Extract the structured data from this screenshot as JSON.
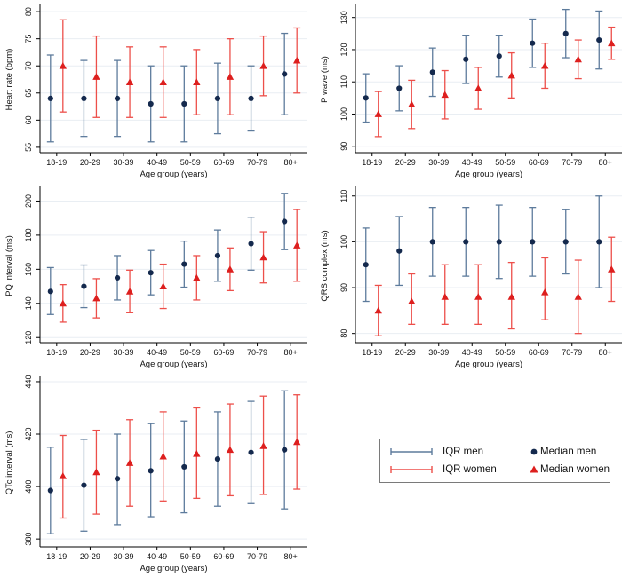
{
  "figure": {
    "background": "#ffffff",
    "x_axis_label": "Age group (years)",
    "age_groups": [
      "18-19",
      "20-29",
      "30-39",
      "40-49",
      "50-59",
      "60-69",
      "70-79",
      "80+"
    ]
  },
  "colors": {
    "men_iqr": "#5d7b9c",
    "men_median": "#14294d",
    "women_iqr": "#ed4f4a",
    "women_median": "#dd1f1e",
    "grid": "#e9eef3",
    "axis": "#000000",
    "text": "#111111",
    "legend_border": "#7a7a7a"
  },
  "legend": {
    "iqr_men": "IQR men",
    "iqr_women": "IQR women",
    "median_men": "Median men",
    "median_women": "Median women"
  },
  "chart_data": [
    {
      "type": "errorbar",
      "panel": "heart-rate",
      "ylabel": "Heart rate (bpm)",
      "xlabel": "Age group (years)",
      "categories": [
        "18-19",
        "20-29",
        "30-39",
        "40-49",
        "50-59",
        "60-69",
        "70-79",
        "80+"
      ],
      "yticks": [
        55,
        60,
        65,
        70,
        75,
        80
      ],
      "ylim": [
        54,
        81
      ],
      "grid": true,
      "series": [
        {
          "name": "men",
          "median": [
            64,
            64,
            64,
            63,
            63,
            64,
            64,
            68.5
          ],
          "q1": [
            56,
            57,
            57,
            56,
            56,
            57.5,
            58,
            61
          ],
          "q3": [
            72,
            71,
            71,
            70,
            70,
            70.5,
            70,
            76
          ]
        },
        {
          "name": "women",
          "median": [
            70,
            68,
            67,
            67,
            67,
            68,
            70,
            71
          ],
          "q1": [
            61.5,
            60.5,
            60.5,
            60.5,
            61,
            61,
            64.5,
            65
          ],
          "q3": [
            78.5,
            75.5,
            73.5,
            73.5,
            73,
            75,
            75.5,
            77
          ]
        }
      ]
    },
    {
      "type": "errorbar",
      "panel": "p-wave",
      "ylabel": "P wave (ms)",
      "xlabel": "Age group (years)",
      "categories": [
        "18-19",
        "20-29",
        "30-39",
        "40-49",
        "50-59",
        "60-69",
        "70-79",
        "80+"
      ],
      "yticks": [
        90,
        100,
        110,
        120,
        130
      ],
      "ylim": [
        88,
        133.5
      ],
      "grid": true,
      "series": [
        {
          "name": "men",
          "median": [
            105,
            108,
            113,
            117,
            118,
            122,
            125,
            123
          ],
          "q1": [
            97.5,
            101,
            105.5,
            109.5,
            111.5,
            114.5,
            117.5,
            114
          ],
          "q3": [
            112.5,
            115,
            120.5,
            124.5,
            124.5,
            129.5,
            132.5,
            132
          ]
        },
        {
          "name": "women",
          "median": [
            100,
            103,
            106,
            108,
            112,
            115,
            117,
            122
          ],
          "q1": [
            93,
            95.5,
            98.5,
            101.5,
            105,
            108,
            111,
            117
          ],
          "q3": [
            107,
            110.5,
            113.5,
            114.5,
            119,
            122,
            123,
            127
          ]
        }
      ]
    },
    {
      "type": "errorbar",
      "panel": "pq-interval",
      "ylabel": "PQ interval (ms)",
      "xlabel": "Age group (years)",
      "categories": [
        "18-19",
        "20-29",
        "30-39",
        "40-49",
        "50-59",
        "60-69",
        "70-79",
        "80+"
      ],
      "yticks": [
        120,
        140,
        160,
        180,
        200
      ],
      "ylim": [
        117,
        207
      ],
      "grid": true,
      "series": [
        {
          "name": "men",
          "median": [
            147,
            150,
            155,
            158,
            163,
            168,
            175,
            188
          ],
          "q1": [
            133.5,
            137.5,
            142,
            145,
            149.5,
            153,
            159.5,
            171.5
          ],
          "q3": [
            161,
            162.5,
            168,
            171,
            176.5,
            183,
            190.5,
            204.5
          ]
        },
        {
          "name": "women",
          "median": [
            140,
            143,
            147,
            150,
            155,
            160,
            167,
            174
          ],
          "q1": [
            129,
            131.5,
            134.5,
            137,
            142,
            147.5,
            152,
            153
          ],
          "q3": [
            151,
            154.5,
            159.5,
            163,
            168,
            172.5,
            182,
            195
          ]
        }
      ]
    },
    {
      "type": "errorbar",
      "panel": "qrs-complex",
      "ylabel": "QRS complex (ms)",
      "xlabel": "Age group (years)",
      "categories": [
        "18-19",
        "20-29",
        "30-39",
        "40-49",
        "50-59",
        "60-69",
        "70-79",
        "80+"
      ],
      "yticks": [
        80,
        90,
        100,
        110
      ],
      "ylim": [
        78,
        111.5
      ],
      "grid": true,
      "series": [
        {
          "name": "men",
          "median": [
            95,
            98,
            100,
            100,
            100,
            100,
            100,
            100
          ],
          "q1": [
            87,
            90.5,
            92.5,
            92.5,
            92,
            92.5,
            93,
            90
          ],
          "q3": [
            103,
            105.5,
            107.5,
            107.5,
            108,
            107.5,
            107,
            110
          ]
        },
        {
          "name": "women",
          "median": [
            85,
            87,
            88,
            88,
            88,
            89,
            88,
            94
          ],
          "q1": [
            79.5,
            82,
            82,
            82,
            81,
            83,
            80,
            87
          ],
          "q3": [
            90.5,
            93,
            95,
            95,
            95.5,
            96.5,
            96,
            101
          ]
        }
      ]
    },
    {
      "type": "errorbar",
      "panel": "qtc-interval",
      "ylabel": "QTc interval (ms)",
      "xlabel": "Age group (years)",
      "categories": [
        "18-19",
        "20-29",
        "30-39",
        "40-49",
        "50-59",
        "60-69",
        "70-79",
        "80+"
      ],
      "yticks": [
        380,
        400,
        420,
        440
      ],
      "ylim": [
        377,
        441
      ],
      "grid": true,
      "series": [
        {
          "name": "men",
          "median": [
            398.5,
            400.5,
            403,
            406,
            407.5,
            410.5,
            413,
            414
          ],
          "q1": [
            382,
            383,
            385.5,
            388.5,
            390,
            392.5,
            393.5,
            391.5
          ],
          "q3": [
            415,
            418,
            420,
            424,
            425,
            428.5,
            432.5,
            436.5
          ]
        },
        {
          "name": "women",
          "median": [
            404,
            405.5,
            409,
            411.5,
            412.5,
            414,
            415.5,
            417
          ],
          "q1": [
            388,
            389.5,
            392.5,
            394.5,
            395.5,
            396.5,
            397,
            399
          ],
          "q3": [
            419.5,
            421.5,
            425.5,
            428.5,
            430,
            431.5,
            434.5,
            435
          ]
        }
      ]
    }
  ]
}
